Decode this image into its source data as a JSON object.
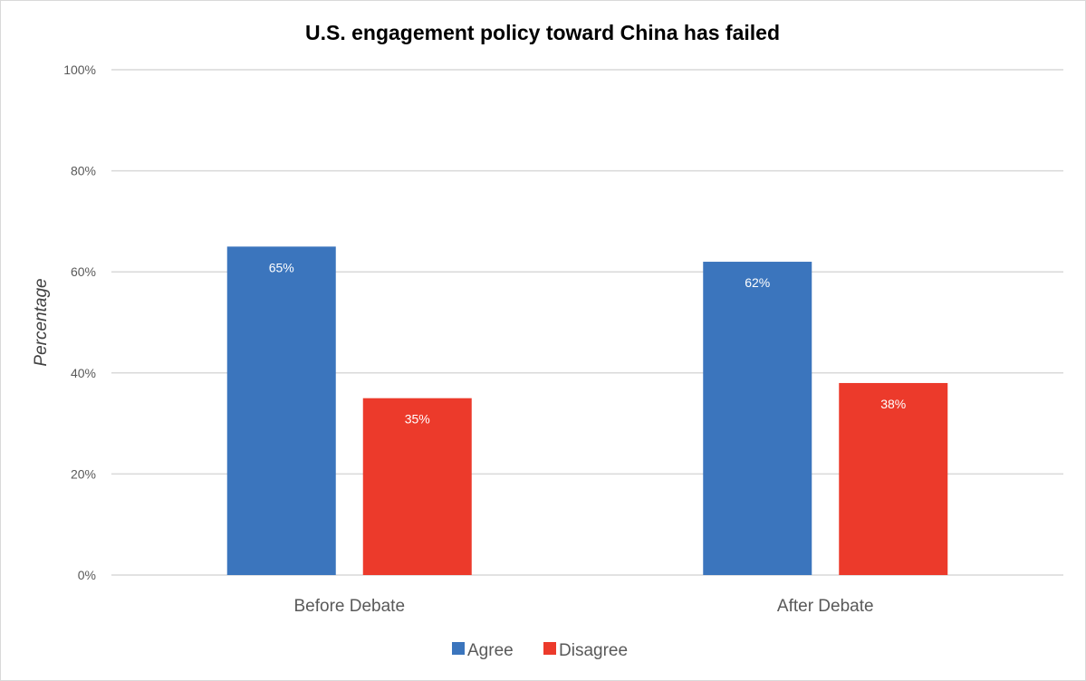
{
  "chart_data": {
    "type": "bar",
    "title": "U.S. engagement policy toward China has failed",
    "xlabel": "",
    "ylabel": "Percentage",
    "ylim": [
      0,
      100
    ],
    "yticks": [
      0,
      20,
      40,
      60,
      80,
      100
    ],
    "ytick_labels": [
      "0%",
      "20%",
      "40%",
      "60%",
      "80%",
      "100%"
    ],
    "grid": true,
    "legend_position": "bottom",
    "categories": [
      "Before Debate",
      "After Debate"
    ],
    "series": [
      {
        "name": "Agree",
        "color": "#3b75bd",
        "values": [
          65,
          62
        ],
        "labels": [
          "65%",
          "62%"
        ]
      },
      {
        "name": "Disagree",
        "color": "#ec3a2b",
        "values": [
          35,
          38
        ],
        "labels": [
          "35%",
          "38%"
        ]
      }
    ]
  }
}
